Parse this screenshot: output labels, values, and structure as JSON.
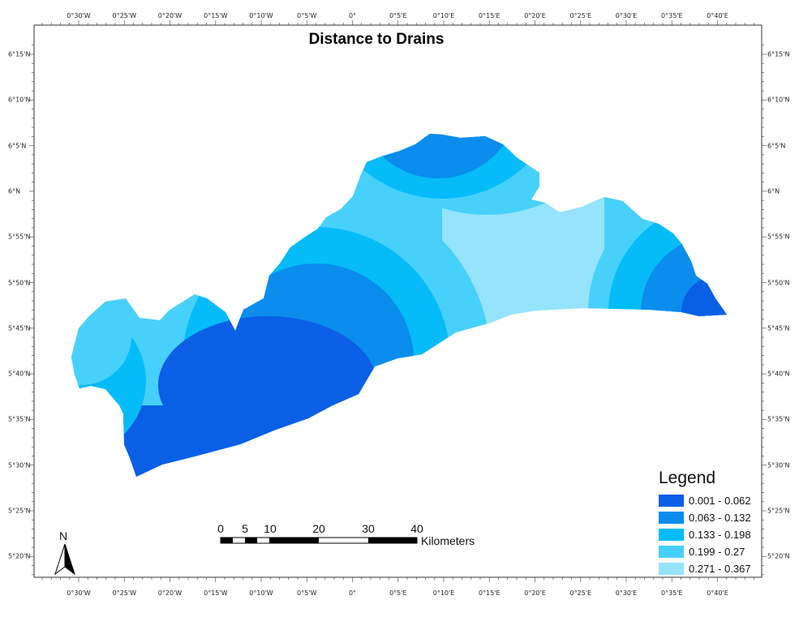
{
  "map": {
    "title": "Distance to Drains",
    "colors": {
      "class1": "#0a5fe6",
      "class2": "#0a8ded",
      "class3": "#05bcf9",
      "class4": "#47d1fa",
      "class5": "#95e3fd",
      "frame": "#333333",
      "ticks": "#555555"
    },
    "longitude_labels": [
      "0°30'W",
      "0°25'W",
      "0°20'W",
      "0°15'W",
      "0°10'W",
      "0°5'W",
      "0°",
      "0°5'E",
      "0°10'E",
      "0°15'E",
      "0°20'E",
      "0°25'E",
      "0°30'E",
      "0°35'E",
      "0°40'E"
    ],
    "latitude_labels": [
      "6°15'N",
      "6°10'N",
      "6°5'N",
      "6°N",
      "5°55'N",
      "5°50'N",
      "5°45'N",
      "5°40'N",
      "5°35'N",
      "5°30'N",
      "5°25'N",
      "5°20'N"
    ],
    "legend": {
      "title": "Legend",
      "items": [
        {
          "label": "0.001 - 0.062",
          "color": "#0a5fe6"
        },
        {
          "label": "0.063 - 0.132",
          "color": "#0a8ded"
        },
        {
          "label": "0.133 - 0.198",
          "color": "#05bcf9"
        },
        {
          "label": "0.199 - 0.27",
          "color": "#47d1fa"
        },
        {
          "label": "0.271 - 0.367",
          "color": "#95e3fd"
        }
      ]
    },
    "scale_bar": {
      "labels": [
        "0",
        "5",
        "10",
        "20",
        "30",
        "40"
      ],
      "unit": "Kilometers"
    },
    "north_arrow": {
      "label": "N",
      "icon": "north-arrow-icon"
    }
  }
}
